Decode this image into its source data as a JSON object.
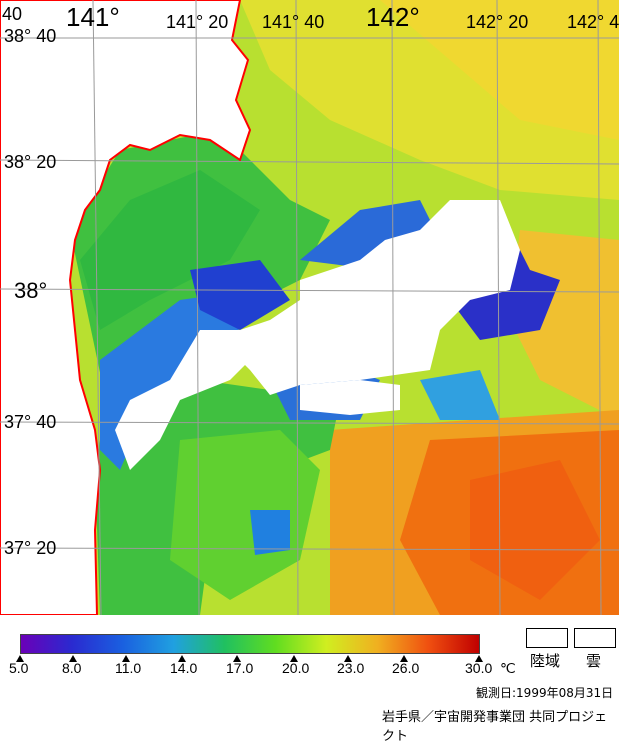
{
  "map": {
    "longitude_labels": [
      "141°",
      "141° 20",
      "141° 40",
      "142°",
      "142° 20",
      "142° 4"
    ],
    "latitude_labels": [
      "38° 40",
      "38° 20",
      "38°",
      "37° 40",
      "37° 20"
    ],
    "corner_label": "40"
  },
  "legend": {
    "ticks": [
      "5.0",
      "8.0",
      "11.0",
      "14.0",
      "17.0",
      "20.0",
      "23.0",
      "26.0",
      "30.0"
    ],
    "unit": "℃",
    "colors": [
      "#6a00b8",
      "#2a2ad0",
      "#1a60e0",
      "#20a0e0",
      "#20c060",
      "#60dd20",
      "#d0ee20",
      "#f0b020",
      "#f05010",
      "#c00000"
    ],
    "land_label": "陸域",
    "cloud_label": "雲",
    "land_color": "#ffffff",
    "cloud_color": "#ffffff",
    "coast_color": "#ff0000"
  },
  "footer": {
    "date": "観測日:1999年08月31日",
    "credit": "岩手県／宇宙開発事業団 共同プロジェクト"
  }
}
